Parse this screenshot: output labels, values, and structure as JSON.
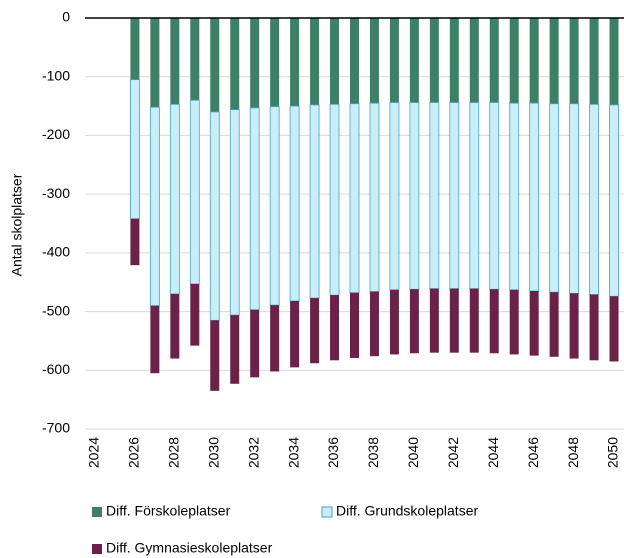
{
  "chart_data": {
    "type": "bar",
    "stacked": true,
    "y_label": "Antal skolplatser",
    "categories": [
      "2024",
      null,
      "2026",
      null,
      "2028",
      null,
      "2030",
      null,
      "2032",
      null,
      "2034",
      null,
      "2036",
      null,
      "2038",
      null,
      "2040",
      null,
      "2042",
      null,
      "2044",
      null,
      "2046",
      null,
      "2048",
      null,
      "2050"
    ],
    "series": [
      {
        "name": "Diff. Förskoleplatser",
        "color": "#3d7f67",
        "values": [
          null,
          null,
          -105,
          -152,
          -147,
          -140,
          -160,
          -156,
          -153,
          -151,
          -150,
          -148,
          -147,
          -146,
          -145,
          -144,
          -144,
          -144,
          -144,
          -144,
          -144,
          -145,
          -145,
          -146,
          -146,
          -147,
          -148
        ]
      },
      {
        "name": "Diff. Grundskoleplatser",
        "color": "#c9eef8",
        "values": [
          null,
          null,
          -237,
          -338,
          -323,
          -313,
          -355,
          -350,
          -344,
          -338,
          -332,
          -329,
          -325,
          -322,
          -321,
          -319,
          -318,
          -317,
          -317,
          -317,
          -318,
          -318,
          -320,
          -321,
          -323,
          -324,
          -326
        ]
      },
      {
        "name": "Diff. Gymnasieskoleplatser",
        "color": "#6b2248",
        "values": [
          null,
          null,
          -79,
          -115,
          -110,
          -105,
          -120,
          -117,
          -115,
          -113,
          -113,
          -111,
          -111,
          -111,
          -110,
          -110,
          -109,
          -109,
          -109,
          -109,
          -109,
          -110,
          -110,
          -110,
          -111,
          -112,
          -111
        ]
      }
    ],
    "ylim": [
      -700,
      0
    ],
    "yticks": [
      0,
      -100,
      -200,
      -300,
      -400,
      -500,
      -600,
      -700
    ],
    "grid": true
  }
}
